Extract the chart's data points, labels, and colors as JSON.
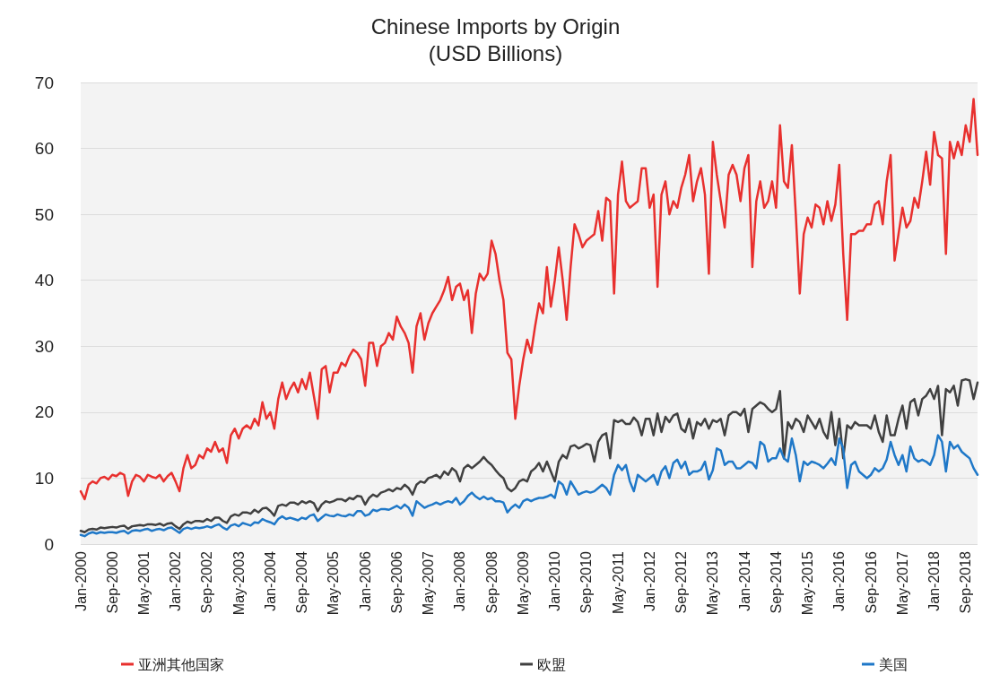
{
  "chart_data": {
    "type": "line",
    "title": "Chinese Imports by Origin",
    "subtitle": "(USD Billions)",
    "categories": [
      "Jan-2000",
      null,
      null,
      null,
      null,
      null,
      null,
      null,
      "Sep-2000",
      null,
      null,
      null,
      null,
      null,
      null,
      null,
      "May-2001",
      null,
      null,
      null,
      null,
      null,
      null,
      null,
      "Jan-2002",
      null,
      null,
      null,
      null,
      null,
      null,
      null,
      "Sep-2002",
      null,
      null,
      null,
      null,
      null,
      null,
      null,
      "May-2003",
      null,
      null,
      null,
      null,
      null,
      null,
      null,
      "Jan-2004",
      null,
      null,
      null,
      null,
      null,
      null,
      null,
      "Sep-2004",
      null,
      null,
      null,
      null,
      null,
      null,
      null,
      "May-2005",
      null,
      null,
      null,
      null,
      null,
      null,
      null,
      "Jan-2006",
      null,
      null,
      null,
      null,
      null,
      null,
      null,
      "Sep-2006",
      null,
      null,
      null,
      null,
      null,
      null,
      null,
      "May-2007",
      null,
      null,
      null,
      null,
      null,
      null,
      null,
      "Jan-2008",
      null,
      null,
      null,
      null,
      null,
      null,
      null,
      "Sep-2008",
      null,
      null,
      null,
      null,
      null,
      null,
      null,
      "May-2009",
      null,
      null,
      null,
      null,
      null,
      null,
      null,
      "Jan-2010",
      null,
      null,
      null,
      null,
      null,
      null,
      null,
      "Sep-2010",
      null,
      null,
      null,
      null,
      null,
      null,
      null,
      "May-2011",
      null,
      null,
      null,
      null,
      null,
      null,
      null,
      "Jan-2012",
      null,
      null,
      null,
      null,
      null,
      null,
      null,
      "Sep-2012",
      null,
      null,
      null,
      null,
      null,
      null,
      null,
      "May-2013",
      null,
      null,
      null,
      null,
      null,
      null,
      null,
      "Jan-2014",
      null,
      null,
      null,
      null,
      null,
      null,
      null,
      "Sep-2014",
      null,
      null,
      null,
      null,
      null,
      null,
      null,
      "May-2015",
      null,
      null,
      null,
      null,
      null,
      null,
      null,
      "Jan-2016",
      null,
      null,
      null,
      null,
      null,
      null,
      null,
      "Sep-2016",
      null,
      null,
      null,
      null,
      null,
      null,
      null,
      "May-2017",
      null,
      null,
      null,
      null,
      null,
      null,
      null,
      "Jan-2018",
      null,
      null,
      null,
      null,
      null,
      null,
      null,
      "Sep-2018",
      null,
      null,
      null
    ],
    "series": [
      {
        "name": "亚洲其他国家",
        "color": "#e8302e",
        "values": [
          8,
          6.8,
          9,
          9.5,
          9.2,
          10,
          10.2,
          9.8,
          10.5,
          10.3,
          10.8,
          10.5,
          7.3,
          9.5,
          10.5,
          10.2,
          9.5,
          10.5,
          10.2,
          10,
          10.5,
          9.5,
          10.3,
          10.8,
          9.5,
          8,
          11.5,
          13.5,
          11.5,
          12,
          13.5,
          13,
          14.5,
          14,
          15.5,
          14,
          14.5,
          12.3,
          16.5,
          17.5,
          16,
          17.5,
          18,
          17.5,
          19,
          18,
          21.5,
          19,
          20,
          17.5,
          22,
          24.5,
          22,
          23.5,
          24.5,
          23,
          25,
          23.5,
          26,
          22.5,
          19,
          26.5,
          27,
          23,
          26,
          26,
          27.5,
          27,
          28.5,
          29.5,
          29,
          28,
          24,
          30.5,
          30.5,
          27,
          30,
          30.5,
          32,
          31,
          34.5,
          33,
          32,
          30.5,
          26,
          33,
          35,
          31,
          33.5,
          35,
          36,
          37,
          38.5,
          40.5,
          37,
          39,
          39.5,
          37,
          38.5,
          32,
          38,
          41,
          40,
          41,
          46,
          44,
          40,
          37,
          29,
          28,
          19,
          24,
          28,
          31,
          29,
          33,
          36.5,
          35,
          42,
          36,
          40,
          45,
          40,
          34,
          42,
          48.5,
          47,
          45,
          46,
          46.5,
          47,
          50.5,
          46,
          52.5,
          52,
          38,
          53,
          58,
          52,
          51,
          51.5,
          52,
          57,
          57,
          51,
          53,
          39,
          53,
          55,
          50,
          52,
          51,
          54,
          56,
          59,
          52,
          55,
          57,
          53,
          41,
          61,
          56,
          52,
          48,
          56,
          57.5,
          56,
          52,
          57,
          59,
          42,
          52,
          55,
          51,
          52,
          55,
          51,
          63.5,
          55,
          54,
          60.5,
          50,
          38,
          47,
          49.5,
          48,
          51.5,
          51,
          48.5,
          52,
          49,
          51.5,
          57.5,
          44,
          34,
          47,
          47,
          47.5,
          47.5,
          48.5,
          48.5,
          51.5,
          52,
          48.5,
          55,
          59,
          43,
          47,
          51,
          48,
          49,
          52.5,
          51,
          55,
          59.5,
          54.5,
          62.5,
          59,
          58.5,
          44,
          61,
          58.5,
          61,
          59,
          63.5,
          61,
          67.5,
          59
        ]
      },
      {
        "name": "欧盟",
        "color": "#404040",
        "values": [
          2,
          1.8,
          2.2,
          2.3,
          2.2,
          2.5,
          2.4,
          2.5,
          2.6,
          2.5,
          2.7,
          2.8,
          2.3,
          2.7,
          2.8,
          2.9,
          2.8,
          3,
          3,
          2.9,
          3.1,
          2.8,
          3.1,
          3.2,
          2.7,
          2.3,
          3,
          3.4,
          3.2,
          3.5,
          3.5,
          3.4,
          3.8,
          3.5,
          4,
          4,
          3.5,
          3.2,
          4.2,
          4.5,
          4.3,
          4.8,
          4.8,
          4.6,
          5.2,
          4.8,
          5.4,
          5.5,
          5,
          4.3,
          5.8,
          6,
          5.8,
          6.3,
          6.3,
          6,
          6.5,
          6.2,
          6.5,
          6.2,
          5,
          6,
          6.5,
          6.3,
          6.5,
          6.8,
          6.8,
          6.5,
          7,
          6.8,
          7.3,
          7.2,
          6,
          7,
          7.5,
          7.2,
          7.8,
          8,
          8.3,
          8,
          8.5,
          8.3,
          9,
          8.5,
          7.5,
          9,
          9.5,
          9.3,
          10,
          10.2,
          10.5,
          10,
          11,
          10.5,
          11.5,
          11,
          9.5,
          11.5,
          12,
          11.5,
          12,
          12.5,
          13.2,
          12.5,
          12,
          11.2,
          10.5,
          10,
          8.5,
          8,
          8.5,
          9.5,
          9.8,
          9.5,
          11,
          11.5,
          12.3,
          11,
          12.5,
          11,
          9.5,
          12.5,
          13.5,
          13,
          14.8,
          15,
          14.5,
          14.8,
          15.2,
          15,
          12.5,
          15.5,
          16.5,
          16.8,
          13,
          18.8,
          18.5,
          18.8,
          18.2,
          18.2,
          19.2,
          18.5,
          16.5,
          19,
          19,
          16.5,
          19.8,
          17,
          19.3,
          18.5,
          19.5,
          19.8,
          17.5,
          17,
          19,
          16,
          18.5,
          18,
          19,
          17.5,
          18.8,
          18.5,
          19,
          16.5,
          19.5,
          20,
          20,
          19.5,
          20.5,
          17,
          20.5,
          21,
          21.5,
          21.2,
          20.5,
          20,
          20.5,
          23.2,
          13,
          18.5,
          17.5,
          19,
          18.5,
          17,
          19.5,
          18.5,
          17.5,
          19,
          17,
          16,
          20,
          15,
          19,
          13,
          18,
          17.5,
          18.5,
          18,
          18,
          18,
          17.5,
          19.5,
          17,
          15.5,
          19.5,
          16.5,
          16.5,
          19,
          21,
          17.5,
          21.5,
          22,
          19.5,
          22,
          22.5,
          23.5,
          22,
          24,
          16.5,
          23.5,
          23,
          24,
          21,
          24.8,
          25,
          24.8,
          22,
          24.5
        ]
      },
      {
        "name": "美国",
        "color": "#1f78c8",
        "values": [
          1.4,
          1.2,
          1.6,
          1.8,
          1.6,
          1.8,
          1.7,
          1.8,
          1.8,
          1.7,
          1.9,
          2,
          1.6,
          2,
          2.1,
          2,
          2.2,
          2.3,
          2,
          2.2,
          2.3,
          2.1,
          2.4,
          2.5,
          2.1,
          1.7,
          2.3,
          2.5,
          2.3,
          2.5,
          2.4,
          2.5,
          2.7,
          2.5,
          2.8,
          3,
          2.5,
          2.2,
          2.8,
          3,
          2.7,
          3.2,
          3,
          2.8,
          3.3,
          3.2,
          3.8,
          3.5,
          3.3,
          3,
          3.8,
          4.2,
          3.8,
          4,
          3.8,
          3.6,
          4,
          3.8,
          4.3,
          4.5,
          3.5,
          4,
          4.5,
          4.3,
          4.2,
          4.5,
          4.3,
          4.2,
          4.5,
          4.3,
          5,
          5,
          4.3,
          4.5,
          5.2,
          5,
          5.3,
          5.3,
          5.2,
          5.5,
          5.8,
          5.4,
          6,
          5.5,
          4.3,
          6.5,
          6,
          5.5,
          5.8,
          6,
          6.3,
          6,
          6.3,
          6.5,
          6.3,
          7,
          6,
          6.5,
          7.3,
          7.8,
          7.2,
          6.8,
          7.2,
          6.8,
          7,
          6.5,
          6.5,
          6.3,
          4.8,
          5.5,
          6,
          5.5,
          6.5,
          6.8,
          6.5,
          6.8,
          7,
          7,
          7.2,
          7.5,
          7,
          9.5,
          9,
          7.5,
          9.5,
          8.5,
          7.5,
          7.8,
          8,
          7.8,
          8,
          8.5,
          9,
          8.5,
          7.5,
          10.5,
          12,
          11.2,
          12,
          9.5,
          8,
          10.5,
          10,
          9.5,
          10,
          10.5,
          9,
          11,
          11.8,
          10,
          12.3,
          12.8,
          11.5,
          12.5,
          10.5,
          11,
          11,
          11.3,
          12.5,
          9.8,
          11.2,
          14.5,
          14.2,
          12,
          12.5,
          12.5,
          11.5,
          11.5,
          12,
          12.5,
          12.3,
          11.5,
          15.5,
          15,
          12.5,
          13,
          13,
          14.5,
          13,
          12.5,
          16,
          13.5,
          9.5,
          12.5,
          12,
          12.5,
          12.3,
          12,
          11.5,
          12.2,
          13,
          12,
          16,
          14.5,
          8.5,
          12,
          12.5,
          11,
          10.5,
          10,
          10.5,
          11.5,
          11,
          11.5,
          12.8,
          15.5,
          13.5,
          12,
          13.5,
          11,
          14.8,
          13,
          12.5,
          12.8,
          12.5,
          12,
          13.5,
          16.5,
          15.5,
          11,
          15.5,
          14.5,
          15,
          14,
          13.5,
          13,
          11.5,
          10.5
        ]
      }
    ],
    "ylim": [
      0,
      70
    ],
    "yticks": [
      0,
      10,
      20,
      30,
      40,
      50,
      60,
      70
    ],
    "grid": "y",
    "legend": "bottom",
    "marker": "none",
    "line_style": "solid"
  }
}
